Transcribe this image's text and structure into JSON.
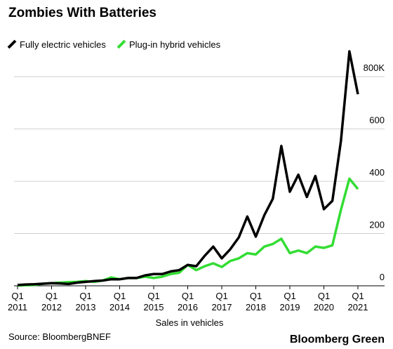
{
  "chart_data": {
    "type": "line",
    "title": "Zombies With Batteries",
    "x_label": "Sales in vehicles",
    "source": "Source: BloombergBNEF",
    "brand": "Bloomberg Green",
    "categories": [
      "Q1 2011",
      null,
      null,
      null,
      "Q1 2012",
      null,
      null,
      null,
      "Q1 2013",
      null,
      null,
      null,
      "Q1 2014",
      null,
      null,
      null,
      "Q1 2015",
      null,
      null,
      null,
      "Q1 2016",
      null,
      null,
      null,
      "Q1 2017",
      null,
      null,
      null,
      "Q1 2018",
      null,
      null,
      null,
      "Q1 2019",
      null,
      null,
      null,
      "Q1 2020",
      null,
      null,
      null,
      "Q1 2021"
    ],
    "series": [
      {
        "name": "Fully electric vehicles",
        "color": "#000000",
        "values": [
          3000,
          5000,
          6000,
          8000,
          10000,
          9000,
          7000,
          12000,
          15000,
          18000,
          20000,
          25000,
          25000,
          30000,
          30000,
          40000,
          45000,
          45000,
          55000,
          60000,
          80000,
          75000,
          115000,
          150000,
          105000,
          140000,
          185000,
          265000,
          188000,
          270000,
          333000,
          535000,
          360000,
          425000,
          340000,
          420000,
          293000,
          325000,
          553000,
          897000,
          733000
        ]
      },
      {
        "name": "Plug-in hybrid vehicles",
        "color": "#33dd33",
        "values": [
          1000,
          2000,
          3000,
          8000,
          10000,
          12000,
          14000,
          15000,
          18000,
          15000,
          20000,
          32000,
          25000,
          30000,
          30000,
          35000,
          30000,
          35000,
          45000,
          50000,
          80000,
          60000,
          75000,
          86000,
          72000,
          95000,
          105000,
          125000,
          120000,
          150000,
          160000,
          180000,
          125000,
          135000,
          125000,
          150000,
          145000,
          155000,
          290000,
          410000,
          370000
        ]
      }
    ],
    "ylim": [
      0,
      900000
    ],
    "yticks": [
      0,
      {
        "value": 200000,
        "label": "200"
      },
      {
        "value": 400000,
        "label": "400"
      },
      {
        "value": 600000,
        "label": "600"
      },
      {
        "value": 800000,
        "label": "800K"
      }
    ],
    "grid": true
  }
}
